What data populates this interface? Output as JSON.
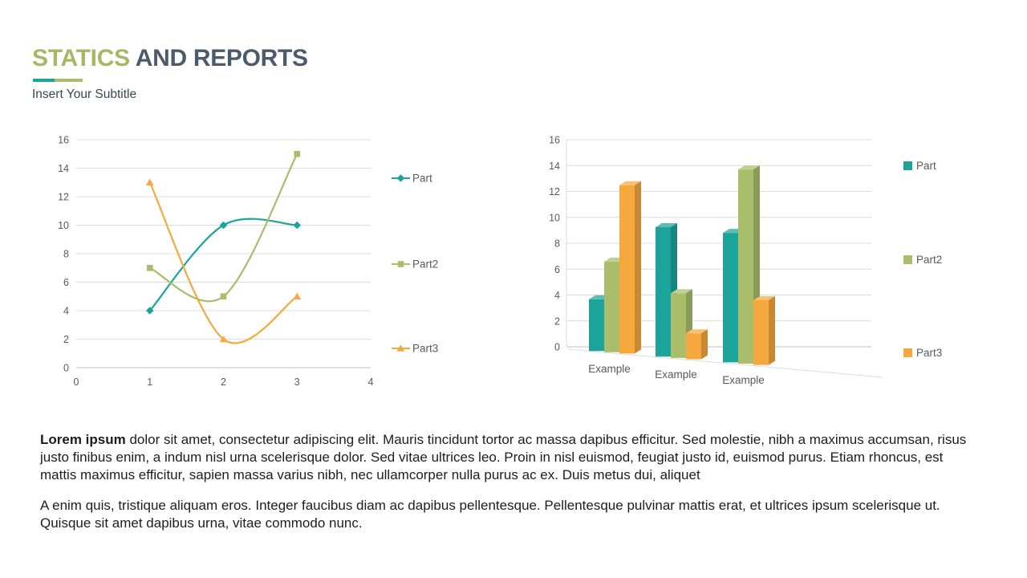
{
  "header": {
    "title_accent": "STATICS",
    "title_rest": " AND REPORTS",
    "subtitle": "Insert Your Subtitle"
  },
  "colors": {
    "accent_green": "#A5B965",
    "title_dark": "#4B5B6B",
    "subtitle_dark": "#33494F",
    "teal": "#1CA49B",
    "green": "#A9BD6B",
    "orange": "#F5A83D",
    "axis_text": "#595959",
    "grid": "#DCDCDC",
    "axis_line": "#BFBFBF",
    "text": "#1D1D1D"
  },
  "chart_data": [
    {
      "type": "line",
      "title": "",
      "smooth": true,
      "x": [
        1,
        2,
        3
      ],
      "series": [
        {
          "name": "Part",
          "color_key": "teal",
          "marker": "diamond",
          "values": [
            4,
            10,
            10
          ]
        },
        {
          "name": "Part2",
          "color_key": "green",
          "marker": "square",
          "values": [
            7,
            5,
            15
          ]
        },
        {
          "name": "Part3",
          "color_key": "orange",
          "marker": "triangle",
          "values": [
            13,
            2,
            5
          ]
        }
      ],
      "xlim": [
        0,
        4
      ],
      "ylim": [
        0,
        16
      ],
      "x_ticks": [
        0,
        1,
        2,
        3,
        4
      ],
      "y_ticks": [
        0,
        2,
        4,
        6,
        8,
        10,
        12,
        14,
        16
      ],
      "grid_on": true,
      "legend_position": "right"
    },
    {
      "type": "bar",
      "style": "3d-clustered",
      "title": "",
      "categories": [
        "Example",
        "Example",
        "Example"
      ],
      "series": [
        {
          "name": "Part",
          "color_key": "teal",
          "values": [
            4,
            10,
            10
          ]
        },
        {
          "name": "Part2",
          "color_key": "green",
          "values": [
            7,
            5,
            15
          ]
        },
        {
          "name": "Part3",
          "color_key": "orange",
          "values": [
            13,
            2,
            5
          ]
        }
      ],
      "ylim": [
        0,
        16
      ],
      "y_ticks": [
        0,
        2,
        4,
        6,
        8,
        10,
        12,
        14,
        16
      ],
      "grid_on": true,
      "legend_position": "right"
    }
  ],
  "body": {
    "p1_bold": "Lorem ipsum",
    "p1_rest": " dolor sit amet, consectetur adipiscing elit. Mauris tincidunt tortor ac massa dapibus efficitur. Sed molestie, nibh a maximus accumsan, risus justo finibus enim, a indum nisl urna scelerisque dolor. Sed vitae ultrices leo. Proin in nisl euismod, feugiat justo id, euismod purus. Etiam rhoncus, est mattis maximus efficitur, sapien massa varius nibh, nec ullamcorper nulla purus ac ex. Duis metus dui, aliquet",
    "p2": "A enim quis, tristique aliquam eros. Integer faucibus diam ac dapibus pellentesque. Pellentesque pulvinar mattis erat, et ultrices ipsum scelerisque ut. Quisque sit amet dapibus urna, vitae commodo nunc."
  }
}
